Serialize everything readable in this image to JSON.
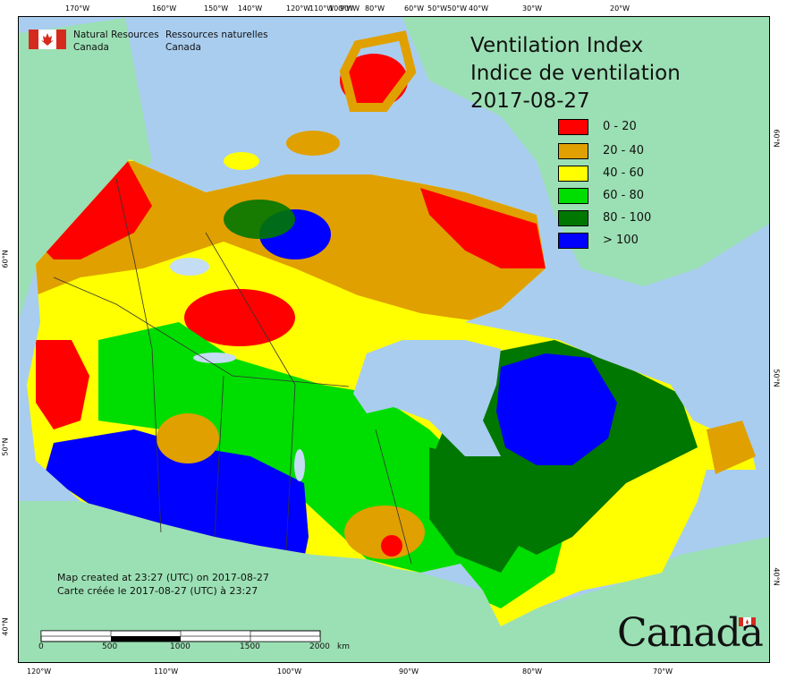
{
  "title": {
    "line1": "Ventilation Index",
    "line2": "Indice de ventilation",
    "date": "2017-08-27"
  },
  "agency": {
    "en_line1": "Natural Resources",
    "en_line2": "Canada",
    "fr_line1": "Ressources naturelles",
    "fr_line2": "Canada"
  },
  "legend": [
    {
      "label": "0 - 20",
      "color": "#ff0000"
    },
    {
      "label": "20 - 40",
      "color": "#e0a000"
    },
    {
      "label": "40 - 60",
      "color": "#ffff00"
    },
    {
      "label": "60 - 80",
      "color": "#00dd00"
    },
    {
      "label": "80 - 100",
      "color": "#007700"
    },
    {
      "label": "> 100",
      "color": "#0000ff"
    }
  ],
  "top_ticks": [
    "170°W",
    "160°W",
    "150°W",
    "140°W",
    "120°W",
    "110°W",
    "100°W",
    "90°W",
    "80°W",
    "60°W",
    "50°W",
    "50°W",
    "40°W",
    "30°W",
    "20°W"
  ],
  "bottom_ticks": [
    "120°W",
    "110°W",
    "100°W",
    "90°W",
    "80°W",
    "70°W"
  ],
  "left_ticks": [
    "60°N",
    "50°N",
    "40°N"
  ],
  "right_ticks": [
    "60°N",
    "50°N",
    "40°N"
  ],
  "notes": {
    "en": "Map created at 23:27 (UTC) on 2017-08-27",
    "fr": "Carte créée le 2017-08-27 (UTC) à 23:27"
  },
  "scale": {
    "labels": [
      "0",
      "500",
      "1000",
      "1500",
      "2000"
    ],
    "unit": "km"
  },
  "wordmark": "Canada",
  "colors": {
    "ocean": "#a9cdef",
    "land_outside": "#9be0b4",
    "lake": "#c4dcf4"
  }
}
